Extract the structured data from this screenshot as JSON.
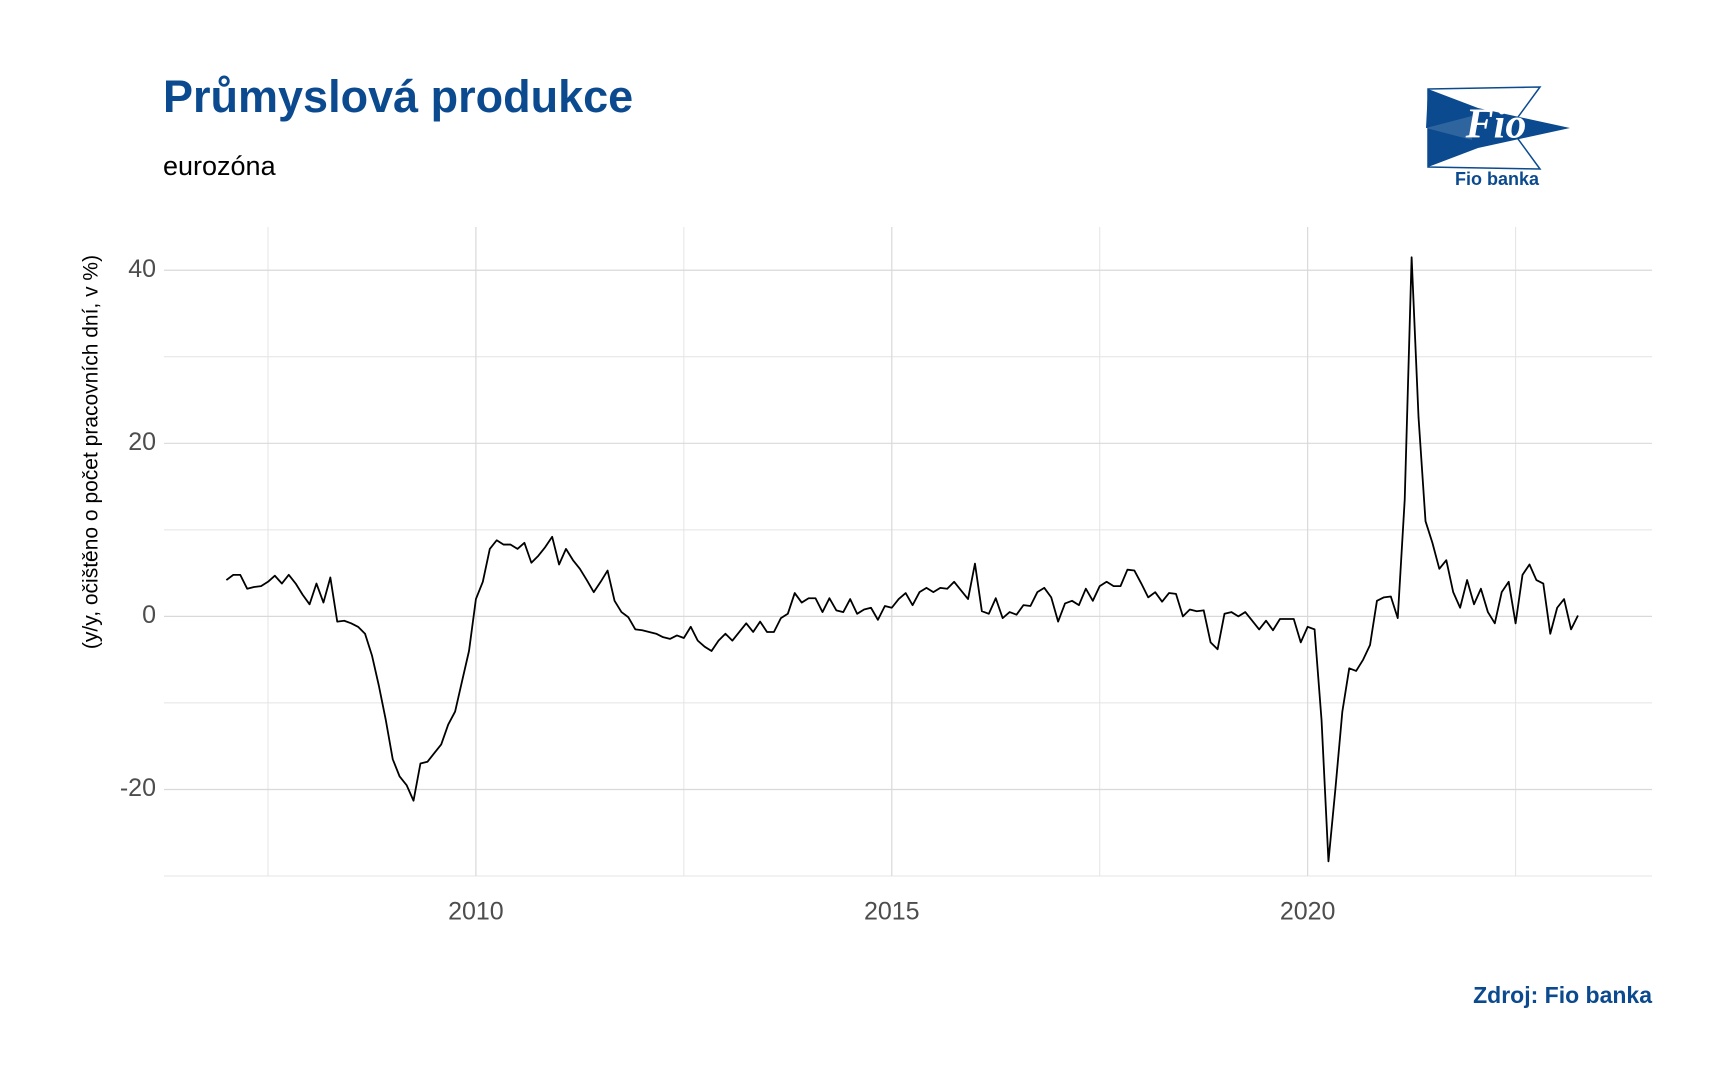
{
  "chart_data": {
    "type": "line",
    "title": "Průmyslová produkce",
    "subtitle": "eurozóna",
    "y_label": "(y/y, očištěno o počet pracovních dní, v %)",
    "source": "Zdroj: Fio banka",
    "logo_text": "Fio",
    "logo_caption": "Fio banka",
    "color": "#000000",
    "grid": true,
    "xlim": [
      2006.25,
      2024.14
    ],
    "ylim": [
      -30,
      45
    ],
    "xticks": [
      2010,
      2015,
      2020
    ],
    "yticks": [
      -20,
      0,
      20,
      40
    ],
    "x_minor_grid": [
      2007.5,
      2012.5,
      2017.5,
      2022.5
    ],
    "y_minor_grid": [
      -30,
      -10,
      10,
      30
    ],
    "x": [
      2007,
      2007.083,
      2007.167,
      2007.25,
      2007.333,
      2007.417,
      2007.5,
      2007.583,
      2007.667,
      2007.75,
      2007.833,
      2007.917,
      2008,
      2008.083,
      2008.167,
      2008.25,
      2008.333,
      2008.417,
      2008.5,
      2008.583,
      2008.667,
      2008.75,
      2008.833,
      2008.917,
      2009,
      2009.083,
      2009.167,
      2009.25,
      2009.333,
      2009.417,
      2009.5,
      2009.583,
      2009.667,
      2009.75,
      2009.833,
      2009.917,
      2010,
      2010.083,
      2010.167,
      2010.25,
      2010.333,
      2010.417,
      2010.5,
      2010.583,
      2010.667,
      2010.75,
      2010.833,
      2010.917,
      2011,
      2011.083,
      2011.167,
      2011.25,
      2011.333,
      2011.417,
      2011.5,
      2011.583,
      2011.667,
      2011.75,
      2011.833,
      2011.917,
      2012,
      2012.083,
      2012.167,
      2012.25,
      2012.333,
      2012.417,
      2012.5,
      2012.583,
      2012.667,
      2012.75,
      2012.833,
      2012.917,
      2013,
      2013.083,
      2013.167,
      2013.25,
      2013.333,
      2013.417,
      2013.5,
      2013.583,
      2013.667,
      2013.75,
      2013.833,
      2013.917,
      2014,
      2014.083,
      2014.167,
      2014.25,
      2014.333,
      2014.417,
      2014.5,
      2014.583,
      2014.667,
      2014.75,
      2014.833,
      2014.917,
      2015,
      2015.083,
      2015.167,
      2015.25,
      2015.333,
      2015.417,
      2015.5,
      2015.583,
      2015.667,
      2015.75,
      2015.833,
      2015.917,
      2016,
      2016.083,
      2016.167,
      2016.25,
      2016.333,
      2016.417,
      2016.5,
      2016.583,
      2016.667,
      2016.75,
      2016.833,
      2016.917,
      2017,
      2017.083,
      2017.167,
      2017.25,
      2017.333,
      2017.417,
      2017.5,
      2017.583,
      2017.667,
      2017.75,
      2017.833,
      2017.917,
      2018,
      2018.083,
      2018.167,
      2018.25,
      2018.333,
      2018.417,
      2018.5,
      2018.583,
      2018.667,
      2018.75,
      2018.833,
      2018.917,
      2019,
      2019.083,
      2019.167,
      2019.25,
      2019.333,
      2019.417,
      2019.5,
      2019.583,
      2019.667,
      2019.75,
      2019.833,
      2019.917,
      2020,
      2020.083,
      2020.167,
      2020.25,
      2020.333,
      2020.417,
      2020.5,
      2020.583,
      2020.667,
      2020.75,
      2020.833,
      2020.917,
      2021,
      2021.083,
      2021.167,
      2021.25,
      2021.333,
      2021.417,
      2021.5,
      2021.583,
      2021.667,
      2021.75,
      2021.833,
      2021.917,
      2022,
      2022.083,
      2022.167,
      2022.25,
      2022.333,
      2022.417,
      2022.5,
      2022.583,
      2022.667,
      2022.75,
      2022.833,
      2022.917,
      2023,
      2023.083,
      2023.167,
      2023.25
    ],
    "values": [
      4.2,
      4.8,
      4.8,
      3.2,
      3.4,
      3.5,
      4.0,
      4.7,
      3.8,
      4.8,
      3.8,
      2.5,
      1.4,
      3.8,
      1.6,
      4.5,
      -0.6,
      -0.5,
      -0.8,
      -1.2,
      -2.0,
      -4.5,
      -8,
      -12,
      -16.5,
      -18.5,
      -19.5,
      -21.3,
      -17,
      -16.8,
      -15.8,
      -14.8,
      -12.5,
      -11,
      -7.5,
      -4,
      2.0,
      4,
      7.8,
      8.8,
      8.3,
      8.3,
      7.8,
      8.5,
      6.2,
      7,
      8,
      9.2,
      6.0,
      7.8,
      6.5,
      5.5,
      4.2,
      2.8,
      4,
      5.3,
      1.8,
      0.5,
      -0.1,
      -1.5,
      -1.6,
      -1.8,
      -2,
      -2.4,
      -2.6,
      -2.2,
      -2.5,
      -1.2,
      -2.8,
      -3.5,
      -4.0,
      -2.8,
      -2.0,
      -2.8,
      -1.8,
      -0.8,
      -1.8,
      -0.6,
      -1.8,
      -1.8,
      -0.2,
      0.3,
      2.7,
      1.6,
      2.1,
      2.1,
      0.5,
      2.1,
      0.7,
      0.5,
      2.0,
      0.3,
      0.8,
      1.0,
      -0.4,
      1.2,
      1.0,
      2.0,
      2.7,
      1.3,
      2.8,
      3.3,
      2.8,
      3.3,
      3.2,
      4,
      3.0,
      2.0,
      6.1,
      0.6,
      0.3,
      2.1,
      -0.2,
      0.5,
      0.2,
      1.3,
      1.2,
      2.8,
      3.3,
      2.2,
      -0.6,
      1.5,
      1.8,
      1.3,
      3.2,
      1.8,
      3.5,
      4.0,
      3.5,
      3.5,
      5.4,
      5.3,
      3.8,
      2.2,
      2.8,
      1.7,
      2.7,
      2.6,
      0.0,
      0.8,
      0.6,
      0.7,
      -3.0,
      -3.8,
      0.3,
      0.5,
      0,
      0.5,
      -0.5,
      -1.5,
      -0.5,
      -1.6,
      -0.3,
      -0.3,
      -0.3,
      -3.0,
      -1.2,
      -1.5,
      -12,
      -28.3,
      -20,
      -11,
      -6,
      -6.3,
      -5,
      -3.3,
      1.8,
      2.2,
      2.3,
      -0.2,
      13.5,
      41.5,
      23,
      11,
      8.5,
      5.5,
      6.5,
      2.8,
      1.0,
      4.2,
      1.4,
      3.2,
      0.5,
      -0.8,
      2.8,
      4,
      -0.8,
      4.8,
      6,
      4.2,
      3.8,
      -2.0,
      1.0,
      2.0,
      -1.5,
      0.1
    ]
  }
}
